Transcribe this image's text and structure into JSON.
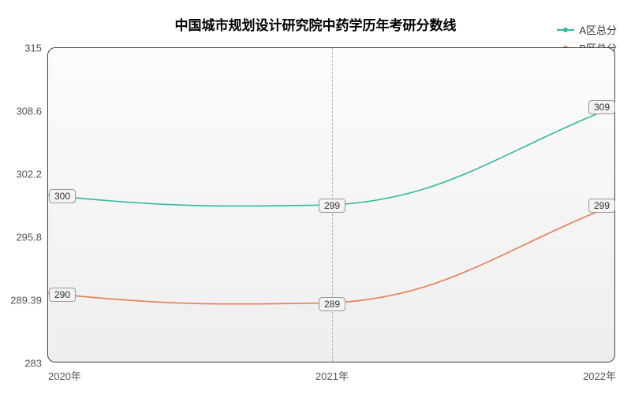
{
  "chart": {
    "type": "line",
    "title": "中国城市规划设计研究院中药学历年考研分数线",
    "title_fontsize": 17,
    "background_color": "#ffffff",
    "plot_bg_from": "#efeeee",
    "plot_bg_to": "#fcfcfc",
    "border_color": "#444444",
    "x_categories": [
      "2020年",
      "2021年",
      "2022年"
    ],
    "ylim": [
      283,
      315
    ],
    "yticks": [
      283,
      289.39,
      295.8,
      302.2,
      308.6,
      315
    ],
    "ytick_labels": [
      "283",
      "289.39",
      "295.8",
      "302.2",
      "308.6",
      "315"
    ],
    "grid_color": "#b5b5b5",
    "label_fontsize": 13,
    "legend": {
      "items": [
        {
          "key": "a",
          "label": "A区总分",
          "color": "#2fb8a0"
        },
        {
          "key": "b",
          "label": "B区总分",
          "color": "#e87b52"
        }
      ],
      "fontsize": 13
    },
    "series": {
      "a": {
        "color": "#2fb8a0",
        "line_width": 1.6,
        "values": [
          300,
          299,
          309
        ],
        "labels": [
          "300",
          "299",
          "309"
        ]
      },
      "b": {
        "color": "#e87b52",
        "line_width": 1.6,
        "values": [
          290,
          289,
          299
        ],
        "labels": [
          "290",
          "289",
          "299"
        ]
      }
    },
    "data_label_fontsize": 12
  }
}
